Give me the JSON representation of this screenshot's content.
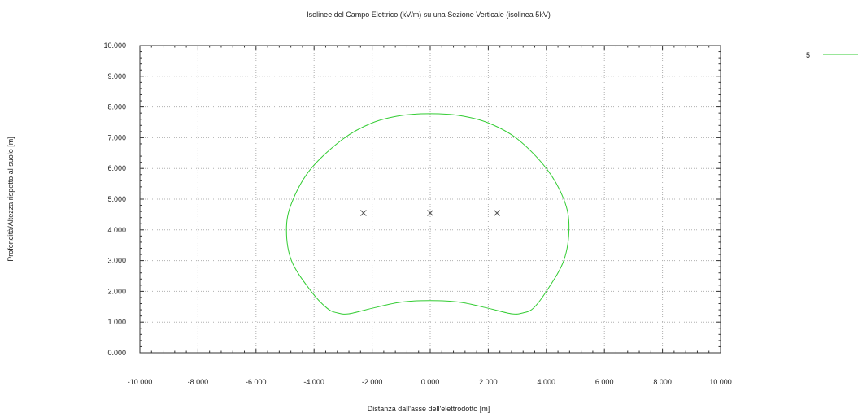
{
  "chart_data": {
    "type": "line",
    "title": "Isolinee del Campo Elettrico (kV/m) su una Sezione Verticale (isolinea 5kV)",
    "xlabel": "Distanza dall'asse dell'elettrodotto [m]",
    "ylabel": "Profondità/Altezza rispetto al suolo [m]",
    "xlim": [
      -10,
      10
    ],
    "ylim": [
      0,
      10
    ],
    "x_ticks": [
      "-10.000",
      "-8.000",
      "-6.000",
      "-4.000",
      "-2.000",
      "0.000",
      "2.000",
      "4.000",
      "6.000",
      "8.000",
      "10.000"
    ],
    "y_ticks": [
      "0.000",
      "1.000",
      "2.000",
      "3.000",
      "4.000",
      "5.000",
      "6.000",
      "7.000",
      "8.000",
      "9.000",
      "10.000"
    ],
    "grid": true,
    "legend_position": "top-right",
    "colors": {
      "isoline": "#33cc33",
      "markers": "#555555",
      "grid": "#b0b0b0"
    },
    "series": [
      {
        "name": "5",
        "points": [
          [
            0.0,
            7.78
          ],
          [
            1.0,
            7.72
          ],
          [
            2.0,
            7.48
          ],
          [
            3.0,
            6.96
          ],
          [
            4.0,
            6.0
          ],
          [
            4.6,
            5.0
          ],
          [
            4.78,
            4.1
          ],
          [
            4.6,
            3.0
          ],
          [
            4.0,
            2.0
          ],
          [
            3.55,
            1.45
          ],
          [
            3.2,
            1.3
          ],
          [
            2.8,
            1.27
          ],
          [
            2.0,
            1.45
          ],
          [
            1.0,
            1.65
          ],
          [
            0.0,
            1.7
          ],
          [
            -1.0,
            1.65
          ],
          [
            -2.0,
            1.45
          ],
          [
            -2.8,
            1.27
          ],
          [
            -3.2,
            1.3
          ],
          [
            -3.55,
            1.45
          ],
          [
            -4.1,
            2.0
          ],
          [
            -4.78,
            3.0
          ],
          [
            -4.95,
            4.1
          ],
          [
            -4.72,
            5.0
          ],
          [
            -4.1,
            6.0
          ],
          [
            -3.0,
            6.96
          ],
          [
            -2.0,
            7.48
          ],
          [
            -1.0,
            7.72
          ],
          [
            0.0,
            7.78
          ]
        ]
      }
    ],
    "markers": [
      {
        "x": -2.3,
        "y": 4.55
      },
      {
        "x": 0.0,
        "y": 4.55
      },
      {
        "x": 2.3,
        "y": 4.55
      }
    ]
  }
}
